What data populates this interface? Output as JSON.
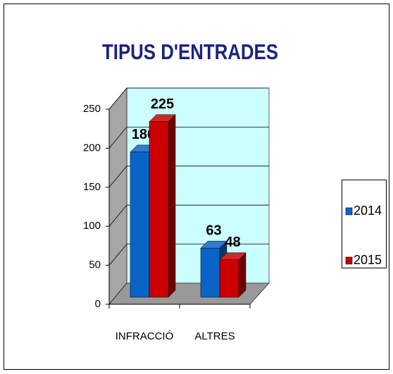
{
  "chart_data": {
    "type": "bar3d",
    "title": "TIPUS D'ENTRADES",
    "categories": [
      "INFRACCIÓ",
      "ALTRES"
    ],
    "series": [
      {
        "name": "2014",
        "color": "#0a64c8",
        "values": [
          186,
          63
        ]
      },
      {
        "name": "2015",
        "color": "#cc0000",
        "values": [
          225,
          48
        ]
      }
    ],
    "ylim": [
      0,
      250
    ],
    "yticks": [
      0,
      50,
      100,
      150,
      200,
      250
    ],
    "grid": true,
    "legend": "right"
  }
}
